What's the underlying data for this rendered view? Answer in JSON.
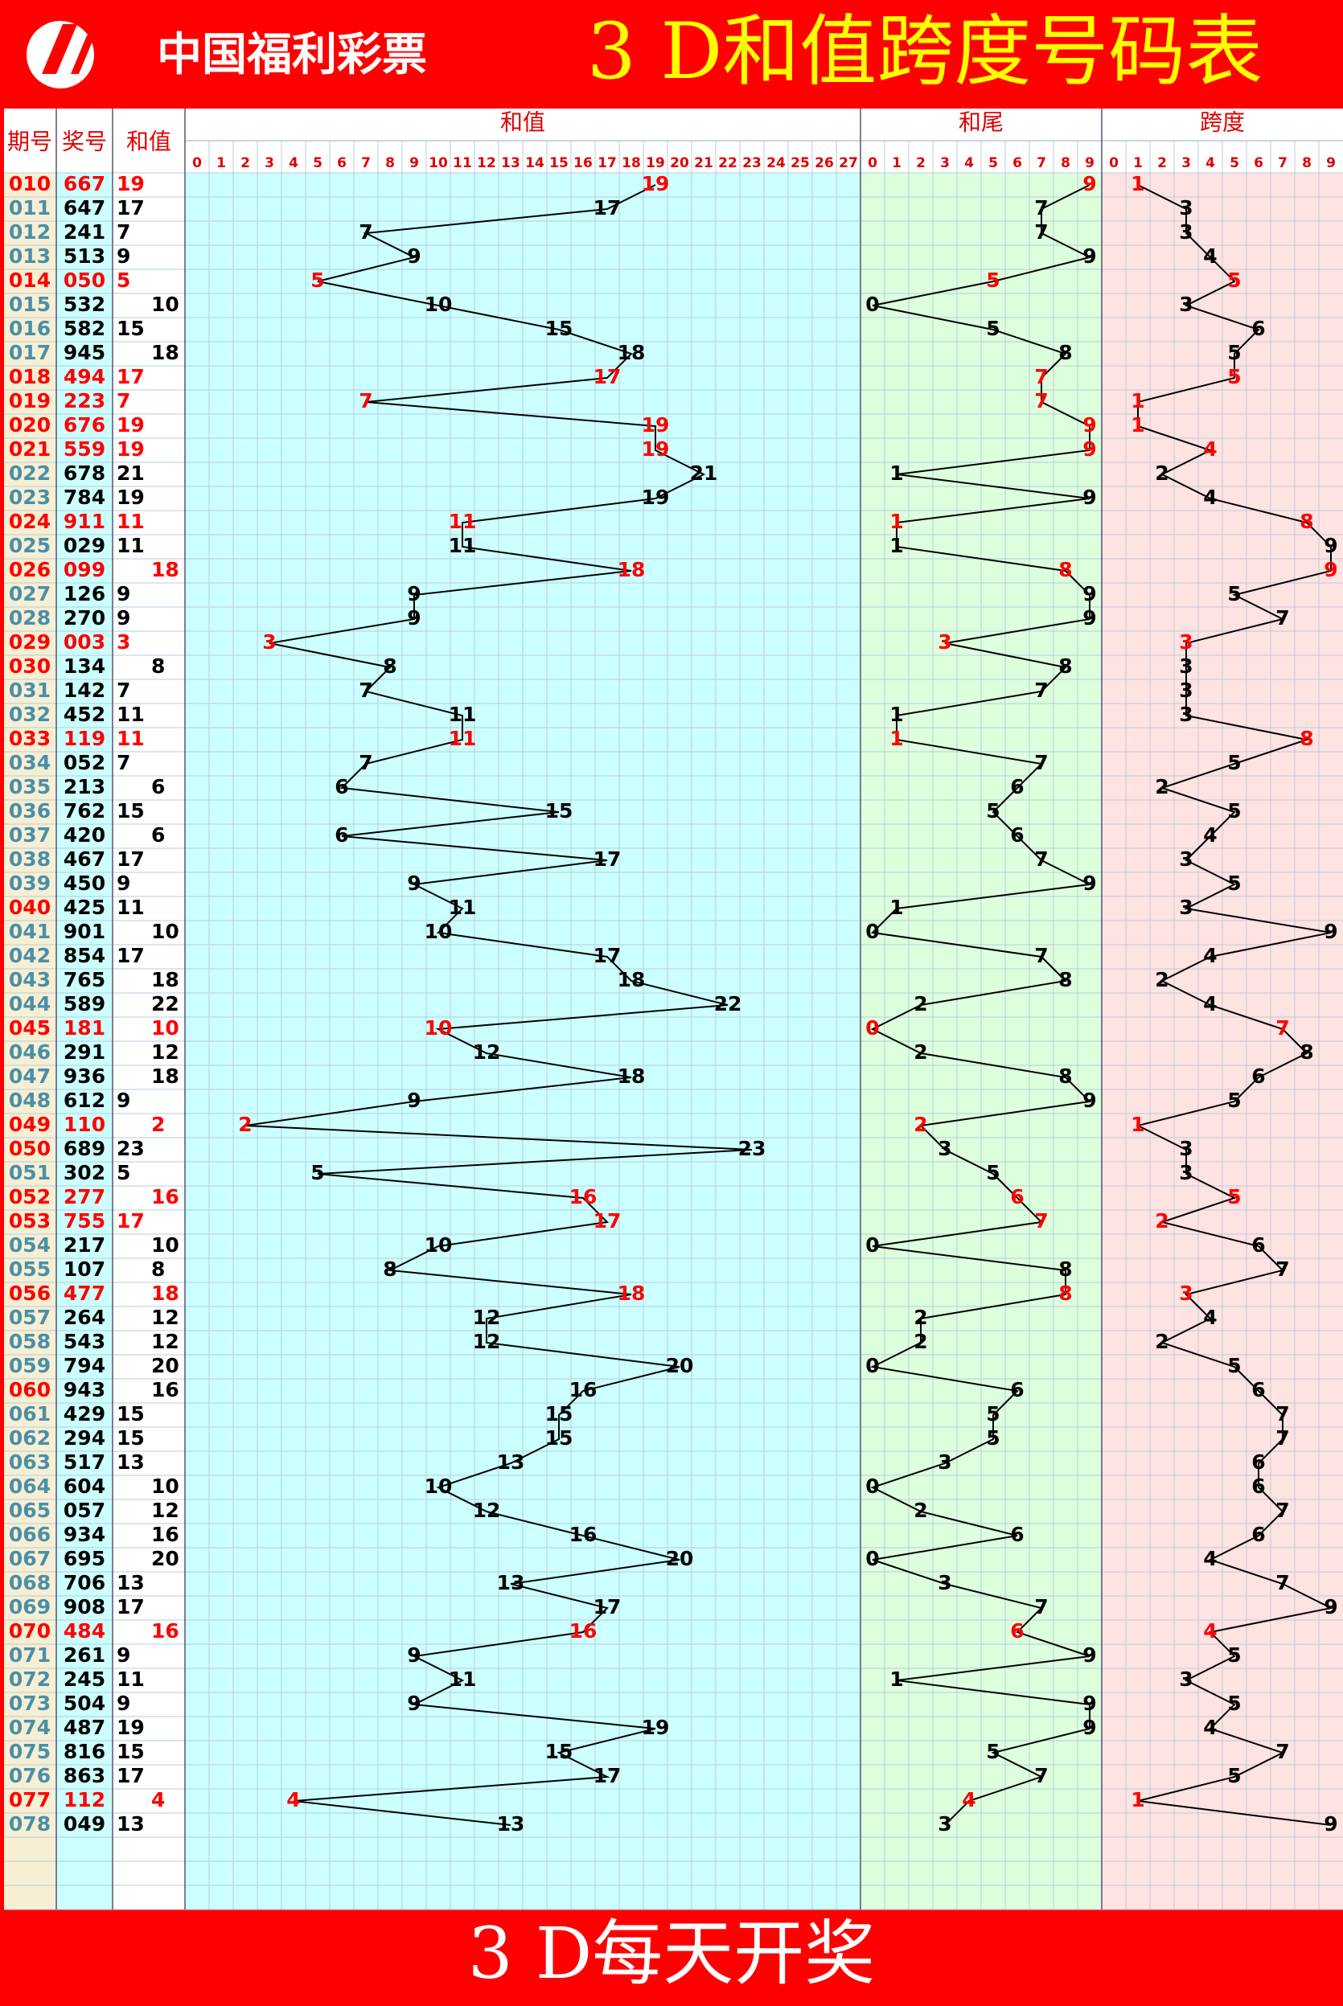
{
  "header": {
    "logo_text": "中国福利彩票",
    "title": "3 D和值跨度号码表"
  },
  "columns": {
    "period": "期号",
    "number": "奖号",
    "sum": "和值",
    "sum_chart": "和值",
    "tail_chart": "和尾",
    "span_chart": "跨度"
  },
  "sum_axis": [
    0,
    1,
    2,
    3,
    4,
    5,
    6,
    7,
    8,
    9,
    10,
    11,
    12,
    13,
    14,
    15,
    16,
    17,
    18,
    19,
    20,
    21,
    22,
    23,
    24,
    25,
    26,
    27
  ],
  "tail_axis": [
    0,
    1,
    2,
    3,
    4,
    5,
    6,
    7,
    8,
    9
  ],
  "span_axis": [
    0,
    1,
    2,
    3,
    4,
    5,
    6,
    7,
    8,
    9
  ],
  "rows": [
    {
      "period": "010",
      "number": "667",
      "sum": 19,
      "tail": 9,
      "span": 1,
      "red": true
    },
    {
      "period": "011",
      "number": "647",
      "sum": 17,
      "tail": 7,
      "span": 3,
      "red": false
    },
    {
      "period": "012",
      "number": "241",
      "sum": 7,
      "tail": 7,
      "span": 3,
      "red": false
    },
    {
      "period": "013",
      "number": "513",
      "sum": 9,
      "tail": 9,
      "span": 4,
      "red": false
    },
    {
      "period": "014",
      "number": "050",
      "sum": 5,
      "tail": 5,
      "span": 5,
      "red": true
    },
    {
      "period": "015",
      "number": "532",
      "sum": 10,
      "tail": 0,
      "span": 3,
      "red": false
    },
    {
      "period": "016",
      "number": "582",
      "sum": 15,
      "tail": 5,
      "span": 6,
      "red": false
    },
    {
      "period": "017",
      "number": "945",
      "sum": 18,
      "tail": 8,
      "span": 5,
      "red": false
    },
    {
      "period": "018",
      "number": "494",
      "sum": 17,
      "tail": 7,
      "span": 5,
      "red": true
    },
    {
      "period": "019",
      "number": "223",
      "sum": 7,
      "tail": 7,
      "span": 1,
      "red": true
    },
    {
      "period": "020",
      "number": "676",
      "sum": 19,
      "tail": 9,
      "span": 1,
      "red": true
    },
    {
      "period": "021",
      "number": "559",
      "sum": 19,
      "tail": 9,
      "span": 4,
      "red": true
    },
    {
      "period": "022",
      "number": "678",
      "sum": 21,
      "tail": 1,
      "span": 2,
      "red": false
    },
    {
      "period": "023",
      "number": "784",
      "sum": 19,
      "tail": 9,
      "span": 4,
      "red": false
    },
    {
      "period": "024",
      "number": "911",
      "sum": 11,
      "tail": 1,
      "span": 8,
      "red": true
    },
    {
      "period": "025",
      "number": "029",
      "sum": 11,
      "tail": 1,
      "span": 9,
      "red": false
    },
    {
      "period": "026",
      "number": "099",
      "sum": 18,
      "tail": 8,
      "span": 9,
      "red": true
    },
    {
      "period": "027",
      "number": "126",
      "sum": 9,
      "tail": 9,
      "span": 5,
      "red": false
    },
    {
      "period": "028",
      "number": "270",
      "sum": 9,
      "tail": 9,
      "span": 7,
      "red": false
    },
    {
      "period": "029",
      "number": "003",
      "sum": 3,
      "tail": 3,
      "span": 3,
      "red": true
    },
    {
      "period": "030",
      "number": "134",
      "sum": 8,
      "tail": 8,
      "span": 3,
      "red": false
    },
    {
      "period": "031",
      "number": "142",
      "sum": 7,
      "tail": 7,
      "span": 3,
      "red": false
    },
    {
      "period": "032",
      "number": "452",
      "sum": 11,
      "tail": 1,
      "span": 3,
      "red": false
    },
    {
      "period": "033",
      "number": "119",
      "sum": 11,
      "tail": 1,
      "span": 8,
      "red": true
    },
    {
      "period": "034",
      "number": "052",
      "sum": 7,
      "tail": 7,
      "span": 5,
      "red": false
    },
    {
      "period": "035",
      "number": "213",
      "sum": 6,
      "tail": 6,
      "span": 2,
      "red": false
    },
    {
      "period": "036",
      "number": "762",
      "sum": 15,
      "tail": 5,
      "span": 5,
      "red": false
    },
    {
      "period": "037",
      "number": "420",
      "sum": 6,
      "tail": 6,
      "span": 4,
      "red": false
    },
    {
      "period": "038",
      "number": "467",
      "sum": 17,
      "tail": 7,
      "span": 3,
      "red": false
    },
    {
      "period": "039",
      "number": "450",
      "sum": 9,
      "tail": 9,
      "span": 5,
      "red": false
    },
    {
      "period": "040",
      "number": "425",
      "sum": 11,
      "tail": 1,
      "span": 3,
      "red": false
    },
    {
      "period": "041",
      "number": "901",
      "sum": 10,
      "tail": 0,
      "span": 9,
      "red": false
    },
    {
      "period": "042",
      "number": "854",
      "sum": 17,
      "tail": 7,
      "span": 4,
      "red": false
    },
    {
      "period": "043",
      "number": "765",
      "sum": 18,
      "tail": 8,
      "span": 2,
      "red": false
    },
    {
      "period": "044",
      "number": "589",
      "sum": 22,
      "tail": 2,
      "span": 4,
      "red": false
    },
    {
      "period": "045",
      "number": "181",
      "sum": 10,
      "tail": 0,
      "span": 7,
      "red": true
    },
    {
      "period": "046",
      "number": "291",
      "sum": 12,
      "tail": 2,
      "span": 8,
      "red": false
    },
    {
      "period": "047",
      "number": "936",
      "sum": 18,
      "tail": 8,
      "span": 6,
      "red": false
    },
    {
      "period": "048",
      "number": "612",
      "sum": 9,
      "tail": 9,
      "span": 5,
      "red": false
    },
    {
      "period": "049",
      "number": "110",
      "sum": 2,
      "tail": 2,
      "span": 1,
      "red": true
    },
    {
      "period": "050",
      "number": "689",
      "sum": 23,
      "tail": 3,
      "span": 3,
      "red": false
    },
    {
      "period": "051",
      "number": "302",
      "sum": 5,
      "tail": 5,
      "span": 3,
      "red": false
    },
    {
      "period": "052",
      "number": "277",
      "sum": 16,
      "tail": 6,
      "span": 5,
      "red": true
    },
    {
      "period": "053",
      "number": "755",
      "sum": 17,
      "tail": 7,
      "span": 2,
      "red": true
    },
    {
      "period": "054",
      "number": "217",
      "sum": 10,
      "tail": 0,
      "span": 6,
      "red": false
    },
    {
      "period": "055",
      "number": "107",
      "sum": 8,
      "tail": 8,
      "span": 7,
      "red": false
    },
    {
      "period": "056",
      "number": "477",
      "sum": 18,
      "tail": 8,
      "span": 3,
      "red": true
    },
    {
      "period": "057",
      "number": "264",
      "sum": 12,
      "tail": 2,
      "span": 4,
      "red": false
    },
    {
      "period": "058",
      "number": "543",
      "sum": 12,
      "tail": 2,
      "span": 2,
      "red": false
    },
    {
      "period": "059",
      "number": "794",
      "sum": 20,
      "tail": 0,
      "span": 5,
      "red": false
    },
    {
      "period": "060",
      "number": "943",
      "sum": 16,
      "tail": 6,
      "span": 6,
      "red": false
    },
    {
      "period": "061",
      "number": "429",
      "sum": 15,
      "tail": 5,
      "span": 7,
      "red": false
    },
    {
      "period": "062",
      "number": "294",
      "sum": 15,
      "tail": 5,
      "span": 7,
      "red": false
    },
    {
      "period": "063",
      "number": "517",
      "sum": 13,
      "tail": 3,
      "span": 6,
      "red": false
    },
    {
      "period": "064",
      "number": "604",
      "sum": 10,
      "tail": 0,
      "span": 6,
      "red": false
    },
    {
      "period": "065",
      "number": "057",
      "sum": 12,
      "tail": 2,
      "span": 7,
      "red": false
    },
    {
      "period": "066",
      "number": "934",
      "sum": 16,
      "tail": 6,
      "span": 6,
      "red": false
    },
    {
      "period": "067",
      "number": "695",
      "sum": 20,
      "tail": 0,
      "span": 4,
      "red": false
    },
    {
      "period": "068",
      "number": "706",
      "sum": 13,
      "tail": 3,
      "span": 7,
      "red": false
    },
    {
      "period": "069",
      "number": "908",
      "sum": 17,
      "tail": 7,
      "span": 9,
      "red": false
    },
    {
      "period": "070",
      "number": "484",
      "sum": 16,
      "tail": 6,
      "span": 4,
      "red": true
    },
    {
      "period": "071",
      "number": "261",
      "sum": 9,
      "tail": 9,
      "span": 5,
      "red": false
    },
    {
      "period": "072",
      "number": "245",
      "sum": 11,
      "tail": 1,
      "span": 3,
      "red": false
    },
    {
      "period": "073",
      "number": "504",
      "sum": 9,
      "tail": 9,
      "span": 5,
      "red": false
    },
    {
      "period": "074",
      "number": "487",
      "sum": 19,
      "tail": 9,
      "span": 4,
      "red": false
    },
    {
      "period": "075",
      "number": "816",
      "sum": 15,
      "tail": 5,
      "span": 7,
      "red": false
    },
    {
      "period": "076",
      "number": "863",
      "sum": 17,
      "tail": 7,
      "span": 5,
      "red": false
    },
    {
      "period": "077",
      "number": "112",
      "sum": 4,
      "tail": 4,
      "span": 1,
      "red": true
    },
    {
      "period": "078",
      "number": "049",
      "sum": 13,
      "tail": 3,
      "span": 9,
      "red": false
    }
  ],
  "footer": "3 D每天开奖"
}
